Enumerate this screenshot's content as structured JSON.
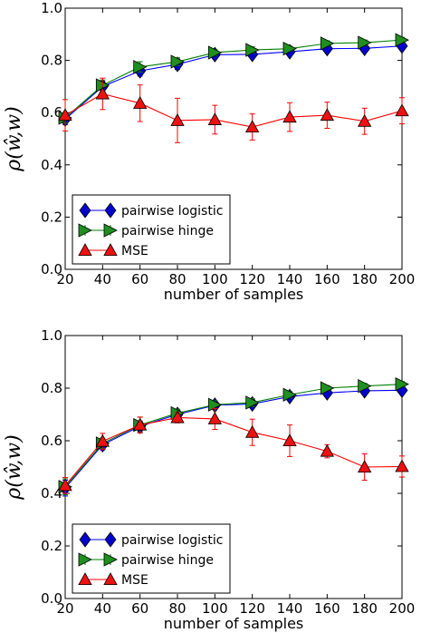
{
  "colors": {
    "pairwise_logistic": "#0000ff",
    "pairwise_hinge": "#008000",
    "mse": "#ff0000",
    "pairwise_logistic_fill": "#0000cc",
    "pairwise_hinge_fill": "#1f8f1f",
    "mse_fill": "#ee1111"
  },
  "chart_data": [
    {
      "type": "line",
      "xlabel": "number of samples",
      "ylabel": "ρ(ŵ,w)",
      "xlim": [
        20,
        200
      ],
      "ylim": [
        0.0,
        1.0
      ],
      "x": [
        20,
        40,
        60,
        80,
        100,
        120,
        140,
        160,
        180,
        200
      ],
      "xticks": [
        "20",
        "40",
        "60",
        "80",
        "100",
        "120",
        "140",
        "160",
        "180",
        "200"
      ],
      "yticks": [
        "0.0",
        "0.2",
        "0.4",
        "0.6",
        "0.8",
        "1.0"
      ],
      "grid": false,
      "legend_position": "bottom-left",
      "series": [
        {
          "key": "pairwise_logistic",
          "name": "pairwise logistic",
          "marker": "diamond",
          "values": [
            0.575,
            0.7,
            0.76,
            0.785,
            0.822,
            0.823,
            0.833,
            0.845,
            0.846,
            0.855
          ],
          "errors": [
            0.02,
            0.02,
            0.02,
            0.02,
            0.015,
            0.012,
            0.012,
            0.01,
            0.01,
            0.01
          ]
        },
        {
          "key": "pairwise_hinge",
          "name": "pairwise hinge",
          "marker": "triangle-right",
          "values": [
            0.58,
            0.705,
            0.775,
            0.795,
            0.83,
            0.84,
            0.845,
            0.865,
            0.868,
            0.878
          ],
          "errors": [
            0.02,
            0.02,
            0.02,
            0.015,
            0.012,
            0.012,
            0.01,
            0.01,
            0.01,
            0.01
          ]
        },
        {
          "key": "mse",
          "name": "MSE",
          "marker": "triangle-up",
          "values": [
            0.59,
            0.672,
            0.636,
            0.57,
            0.573,
            0.545,
            0.583,
            0.59,
            0.567,
            0.607
          ],
          "errors": [
            0.06,
            0.06,
            0.07,
            0.085,
            0.055,
            0.05,
            0.055,
            0.05,
            0.05,
            0.05
          ]
        }
      ]
    },
    {
      "type": "line",
      "xlabel": "number of samples",
      "ylabel": "ρ(ŵ,w)",
      "xlim": [
        20,
        200
      ],
      "ylim": [
        0.0,
        1.0
      ],
      "x": [
        20,
        40,
        60,
        80,
        100,
        120,
        140,
        160,
        180,
        200
      ],
      "xticks": [
        "20",
        "40",
        "60",
        "80",
        "100",
        "120",
        "140",
        "160",
        "180",
        "200"
      ],
      "yticks": [
        "0.0",
        "0.2",
        "0.4",
        "0.6",
        "0.8",
        "1.0"
      ],
      "grid": false,
      "legend_position": "bottom-left",
      "series": [
        {
          "key": "pairwise_logistic",
          "name": "pairwise logistic",
          "marker": "diamond",
          "values": [
            0.42,
            0.585,
            0.655,
            0.7,
            0.735,
            0.74,
            0.768,
            0.782,
            0.79,
            0.792
          ],
          "errors": [
            0.03,
            0.02,
            0.02,
            0.015,
            0.015,
            0.015,
            0.012,
            0.01,
            0.01,
            0.01
          ]
        },
        {
          "key": "pairwise_hinge",
          "name": "pairwise hinge",
          "marker": "triangle-right",
          "values": [
            0.425,
            0.59,
            0.66,
            0.705,
            0.737,
            0.745,
            0.775,
            0.8,
            0.808,
            0.815
          ],
          "errors": [
            0.03,
            0.02,
            0.03,
            0.015,
            0.015,
            0.015,
            0.012,
            0.01,
            0.01,
            0.01
          ]
        },
        {
          "key": "mse",
          "name": "MSE",
          "marker": "triangle-up",
          "values": [
            0.43,
            0.598,
            0.66,
            0.688,
            0.683,
            0.632,
            0.6,
            0.56,
            0.5,
            0.502
          ],
          "errors": [
            0.03,
            0.03,
            0.03,
            0.02,
            0.04,
            0.05,
            0.06,
            0.025,
            0.05,
            0.04
          ]
        }
      ]
    }
  ]
}
